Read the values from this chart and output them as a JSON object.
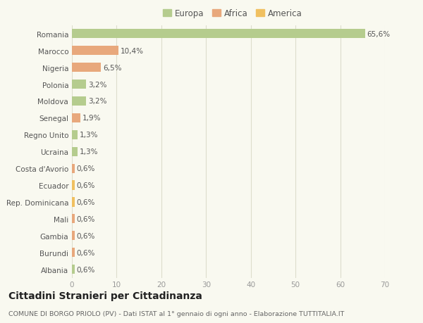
{
  "categories": [
    "Romania",
    "Marocco",
    "Nigeria",
    "Polonia",
    "Moldova",
    "Senegal",
    "Regno Unito",
    "Ucraina",
    "Costa d'Avorio",
    "Ecuador",
    "Rep. Dominicana",
    "Mali",
    "Gambia",
    "Burundi",
    "Albania"
  ],
  "values": [
    65.6,
    10.4,
    6.5,
    3.2,
    3.2,
    1.9,
    1.3,
    1.3,
    0.6,
    0.6,
    0.6,
    0.6,
    0.6,
    0.6,
    0.6
  ],
  "labels": [
    "65,6%",
    "10,4%",
    "6,5%",
    "3,2%",
    "3,2%",
    "1,9%",
    "1,3%",
    "1,3%",
    "0,6%",
    "0,6%",
    "0,6%",
    "0,6%",
    "0,6%",
    "0,6%",
    "0,6%"
  ],
  "continent": [
    "Europa",
    "Africa",
    "Africa",
    "Europa",
    "Europa",
    "Africa",
    "Europa",
    "Europa",
    "Africa",
    "America",
    "America",
    "Africa",
    "Africa",
    "Africa",
    "Europa"
  ],
  "colors": {
    "Europa": "#b5cc8e",
    "Africa": "#e8a87c",
    "America": "#f0c060"
  },
  "xlim": [
    0,
    70
  ],
  "xticks": [
    0,
    10,
    20,
    30,
    40,
    50,
    60,
    70
  ],
  "title": "Cittadini Stranieri per Cittadinanza",
  "subtitle": "COMUNE DI BORGO PRIOLO (PV) - Dati ISTAT al 1° gennaio di ogni anno - Elaborazione TUTTITALIA.IT",
  "background_color": "#f9f9f0",
  "grid_color": "#ddddcc",
  "bar_height": 0.55,
  "label_fontsize": 7.5,
  "ytick_fontsize": 7.5,
  "xtick_fontsize": 7.5,
  "title_fontsize": 10,
  "subtitle_fontsize": 6.8,
  "legend_fontsize": 8.5
}
